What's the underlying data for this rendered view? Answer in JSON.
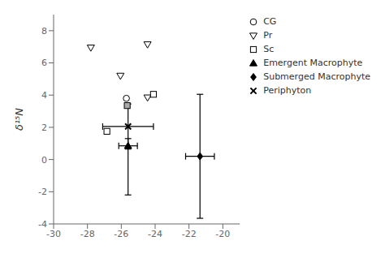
{
  "chart_data": {
    "type": "scatter",
    "ylabel": "δ¹⁵N",
    "xlim": [
      -30,
      -19
    ],
    "ylim": [
      -4,
      9
    ],
    "xticks": [
      -30,
      -28,
      -26,
      -24,
      -22,
      -20
    ],
    "yticks": [
      -4,
      -2,
      0,
      2,
      4,
      6,
      8
    ],
    "grid": false,
    "legend": "upper right",
    "series": [
      {
        "name": "CG",
        "marker": "circle",
        "color": "black",
        "colors": [
          "white"
        ],
        "x": [
          -25.7
        ],
        "values": [
          3.8
        ]
      },
      {
        "name": "Pr",
        "marker": "triangle-down",
        "color": "black",
        "colors": [
          "white",
          "white",
          "white",
          "white"
        ],
        "x": [
          -27.8,
          -26.05,
          -24.45,
          -24.45
        ],
        "values": [
          6.95,
          5.2,
          7.15,
          3.85
        ]
      },
      {
        "name": "Sc",
        "marker": "square",
        "color": "black",
        "colors": [
          "white",
          "white",
          "#aaaaaa"
        ],
        "x": [
          -24.1,
          -26.85,
          -25.65
        ],
        "values": [
          4.05,
          1.75,
          3.35
        ]
      },
      {
        "name": "Emergent Macrophyte",
        "marker": "triangle-up",
        "color": "black",
        "x": [
          -25.6
        ],
        "values": [
          0.85
        ],
        "xerr": [
          0.55
        ],
        "yerr_lo": [
          3.05
        ],
        "yerr_hi": [
          0.45
        ]
      },
      {
        "name": "Submerged Macrophyte",
        "marker": "diamond",
        "color": "black",
        "x": [
          -21.35
        ],
        "values": [
          0.2
        ],
        "xerr": [
          0.85
        ],
        "yerr_lo": [
          3.85
        ],
        "yerr_hi": [
          3.85
        ]
      },
      {
        "name": "Periphyton",
        "marker": "x",
        "color": "black",
        "x": [
          -25.6
        ],
        "values": [
          2.05
        ],
        "xerr": [
          1.5
        ],
        "yerr_lo": [
          1.4
        ],
        "yerr_hi": [
          1.4
        ]
      }
    ]
  }
}
